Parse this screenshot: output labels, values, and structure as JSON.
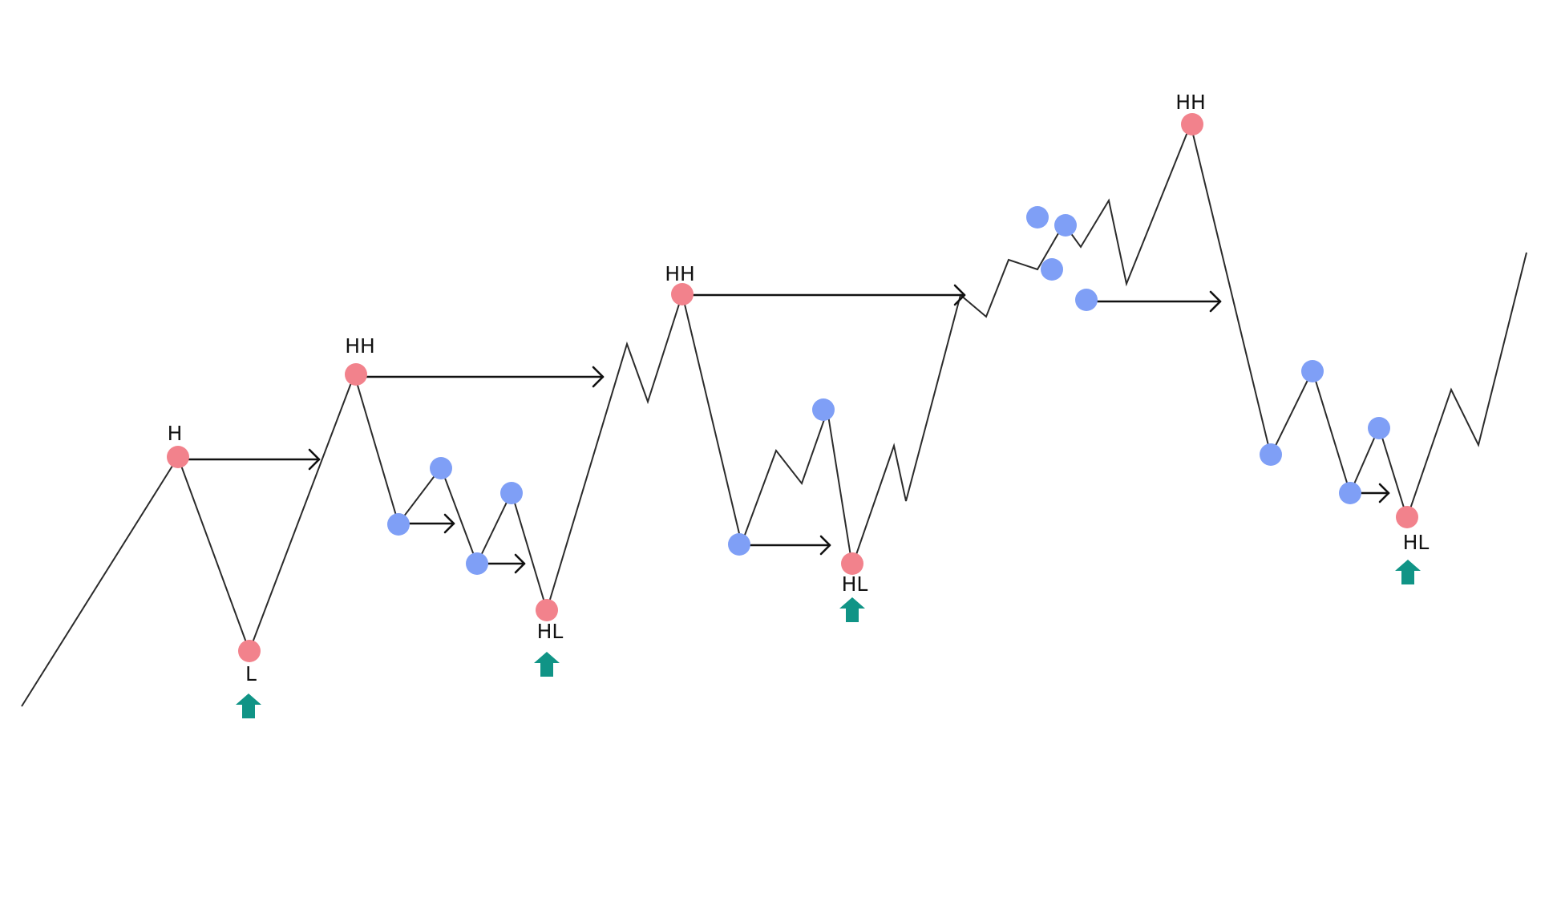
{
  "colors": {
    "background": "#ffffff",
    "price_line": "#2b2b2b",
    "major_swing": "#f2828c",
    "minor_swing": "#7f9ff6",
    "break_arrow": "#111111",
    "entry_arrow": "#109486"
  },
  "labels": {
    "h": "H",
    "l": "L",
    "hh_1": "HH",
    "hl_1": "HL",
    "hh_2": "HH",
    "hl_2": "HL",
    "hh_3": "HH",
    "hl_3": "HL"
  },
  "icons": {
    "entry_marker": "up-arrow-icon",
    "break_marker": "right-arrow-icon"
  }
}
